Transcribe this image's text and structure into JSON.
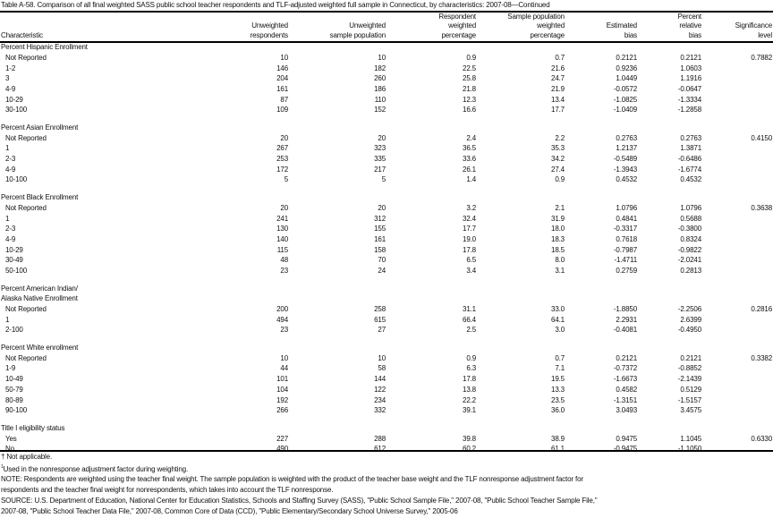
{
  "title": "Table A-58. Comparison of all final weighted SASS public school teacher respondents and TLF-adjusted weighted full sample in Connecticut, by characteristics: 2007-08—Continued",
  "columns": [
    {
      "lines": [
        "Characteristic"
      ]
    },
    {
      "lines": [
        "Unweighted",
        "respondents"
      ]
    },
    {
      "lines": [
        "Unweighted",
        "sample population"
      ]
    },
    {
      "lines": [
        "Respondent",
        "weighted",
        "percentage"
      ]
    },
    {
      "lines": [
        "Sample population",
        "weighted",
        "percentage"
      ]
    },
    {
      "lines": [
        "Estimated",
        "bias"
      ]
    },
    {
      "lines": [
        "Percent",
        "relative",
        "bias"
      ]
    },
    {
      "lines": [
        "Significance",
        "level"
      ]
    }
  ],
  "sections": [
    {
      "title_lines": [
        "Percent Hispanic Enrollment"
      ],
      "rows": [
        {
          "label": "Not Reported",
          "values": [
            "10",
            "10",
            "0.9",
            "0.7",
            "0.2121",
            "0.2121",
            "0.7882"
          ]
        },
        {
          "label": "1-2",
          "values": [
            "146",
            "182",
            "22.5",
            "21.6",
            "0.9236",
            "1.0603",
            ""
          ]
        },
        {
          "label": "3",
          "values": [
            "204",
            "260",
            "25.8",
            "24.7",
            "1.0449",
            "1.1916",
            ""
          ]
        },
        {
          "label": "4-9",
          "values": [
            "161",
            "186",
            "21.8",
            "21.9",
            "-0.0572",
            "-0.0647",
            ""
          ]
        },
        {
          "label": "10-29",
          "values": [
            "87",
            "110",
            "12.3",
            "13.4",
            "-1.0825",
            "-1.3334",
            ""
          ]
        },
        {
          "label": "30-100",
          "values": [
            "109",
            "152",
            "16.6",
            "17.7",
            "-1.0409",
            "-1.2858",
            ""
          ]
        }
      ]
    },
    {
      "title_lines": [
        "Percent Asian Enrollment"
      ],
      "rows": [
        {
          "label": "Not Reported",
          "values": [
            "20",
            "20",
            "2.4",
            "2.2",
            "0.2763",
            "0.2763",
            "0.4150"
          ]
        },
        {
          "label": "1",
          "values": [
            "267",
            "323",
            "36.5",
            "35.3",
            "1.2137",
            "1.3871",
            ""
          ]
        },
        {
          "label": "2-3",
          "values": [
            "253",
            "335",
            "33.6",
            "34.2",
            "-0.5489",
            "-0.6486",
            ""
          ]
        },
        {
          "label": "4-9",
          "values": [
            "172",
            "217",
            "26.1",
            "27.4",
            "-1.3943",
            "-1.6774",
            ""
          ]
        },
        {
          "label": "10-100",
          "values": [
            "5",
            "5",
            "1.4",
            "0.9",
            "0.4532",
            "0.4532",
            ""
          ]
        }
      ]
    },
    {
      "title_lines": [
        "Percent Black Enrollment"
      ],
      "rows": [
        {
          "label": "Not Reported",
          "values": [
            "20",
            "20",
            "3.2",
            "2.1",
            "1.0796",
            "1.0796",
            "0.3638"
          ]
        },
        {
          "label": "1",
          "values": [
            "241",
            "312",
            "32.4",
            "31.9",
            "0.4841",
            "0.5688",
            ""
          ]
        },
        {
          "label": "2-3",
          "values": [
            "130",
            "155",
            "17.7",
            "18.0",
            "-0.3317",
            "-0.3800",
            ""
          ]
        },
        {
          "label": "4-9",
          "values": [
            "140",
            "161",
            "19.0",
            "18.3",
            "0.7618",
            "0.8324",
            ""
          ]
        },
        {
          "label": "10-29",
          "values": [
            "115",
            "158",
            "17.8",
            "18.5",
            "-0.7987",
            "-0.9822",
            ""
          ]
        },
        {
          "label": "30-49",
          "values": [
            "48",
            "70",
            "6.5",
            "8.0",
            "-1.4711",
            "-2.0241",
            ""
          ]
        },
        {
          "label": "50-100",
          "values": [
            "23",
            "24",
            "3.4",
            "3.1",
            "0.2759",
            "0.2813",
            ""
          ]
        }
      ]
    },
    {
      "title_lines": [
        "Percent American Indian/",
        "Alaska Native Enrollment"
      ],
      "rows": [
        {
          "label": "Not Reported",
          "values": [
            "200",
            "258",
            "31.1",
            "33.0",
            "-1.8850",
            "-2.2506",
            "0.2816"
          ]
        },
        {
          "label": "1",
          "values": [
            "494",
            "615",
            "66.4",
            "64.1",
            "2.2931",
            "2.6399",
            ""
          ]
        },
        {
          "label": "2-100",
          "values": [
            "23",
            "27",
            "2.5",
            "3.0",
            "-0.4081",
            "-0.4950",
            ""
          ]
        }
      ]
    },
    {
      "title_lines": [
        "Percent White enrollment"
      ],
      "rows": [
        {
          "label": "Not Reported",
          "values": [
            "10",
            "10",
            "0.9",
            "0.7",
            "0.2121",
            "0.2121",
            "0.3382"
          ]
        },
        {
          "label": "1-9",
          "values": [
            "44",
            "58",
            "6.3",
            "7.1",
            "-0.7372",
            "-0.8852",
            ""
          ]
        },
        {
          "label": "10-49",
          "values": [
            "101",
            "144",
            "17.8",
            "19.5",
            "-1.6673",
            "-2.1439",
            ""
          ]
        },
        {
          "label": "50-79",
          "values": [
            "104",
            "122",
            "13.8",
            "13.3",
            "0.4582",
            "0.5129",
            ""
          ]
        },
        {
          "label": "80-89",
          "values": [
            "192",
            "234",
            "22.2",
            "23.5",
            "-1.3151",
            "-1.5157",
            ""
          ]
        },
        {
          "label": "90-100",
          "values": [
            "266",
            "332",
            "39.1",
            "36.0",
            "3.0493",
            "3.4575",
            ""
          ]
        }
      ]
    },
    {
      "title_lines": [
        "Title I eligibility status"
      ],
      "rows": [
        {
          "label": "Yes",
          "values": [
            "227",
            "288",
            "39.8",
            "38.9",
            "0.9475",
            "1.1045",
            "0.6330"
          ]
        },
        {
          "label": "No",
          "values": [
            "490",
            "612",
            "60.2",
            "61.1",
            "-0.9475",
            "-1.1050",
            ""
          ]
        }
      ]
    }
  ],
  "footnotes": {
    "not_applicable": "† Not applicable.",
    "note1_marker": "1",
    "note1": "Used in the nonresponse adjustment factor during weighting.",
    "note_line1": "NOTE: Respondents are weighted using the teacher final weight. The sample population is weighted with the product of the teacher base weight and the TLF nonresponse adjustment factor for",
    "note_line2": "respondents and the teacher final weight for nonrespondents, which takes into account the TLF nonresponse.",
    "source_line1": "SOURCE: U.S. Department of Education, National Center for Education Statistics, Schools and Staffing Survey (SASS), \"Public School Sample File,\" 2007-08, \"Public School Teacher Sample File,\"",
    "source_line2": "2007-08, \"Public School Teacher Data File,\" 2007-08, Common Core of Data (CCD), \"Public Elementary/Secondary School Universe Survey,\" 2005-06"
  }
}
